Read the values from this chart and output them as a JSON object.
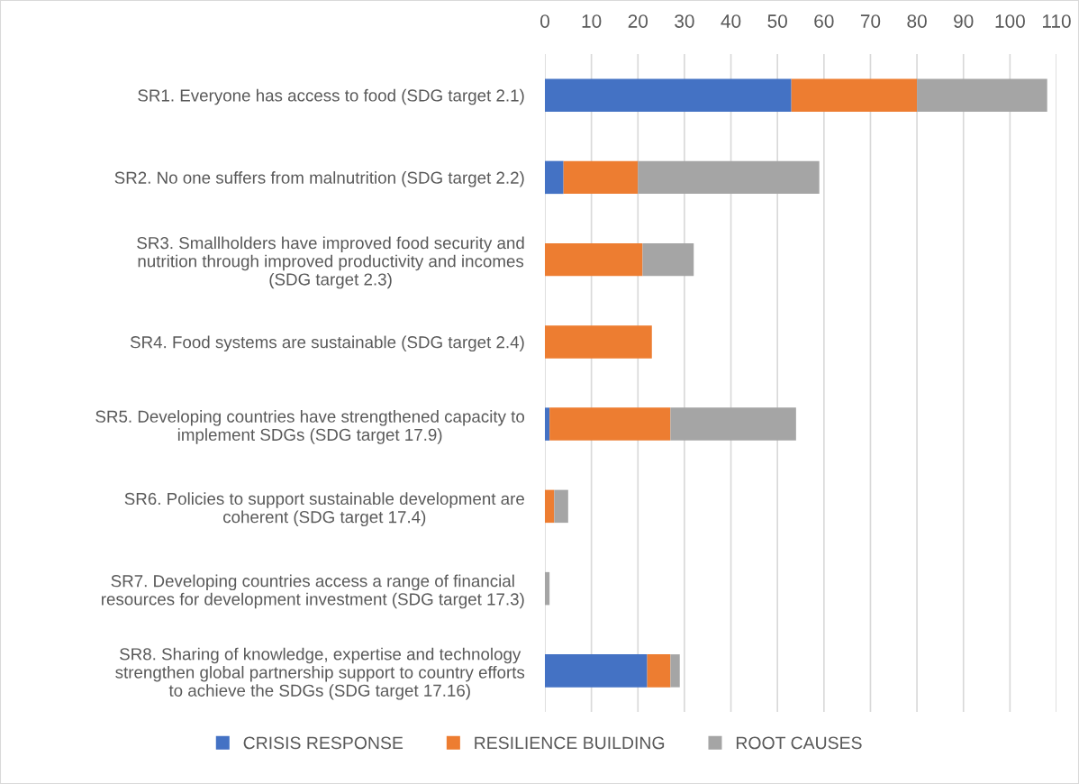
{
  "chart_data": {
    "type": "bar",
    "orientation": "horizontal",
    "stacked": true,
    "categories": [
      "SR1. Everyone has access to food (SDG target 2.1)",
      "SR2. No one suffers from malnutrition (SDG target 2.2)",
      "SR3. Smallholders have improved food security and\nnutrition through improved productivity and incomes\n(SDG target 2.3)",
      "SR4. Food systems are sustainable (SDG target 2.4)",
      "SR5. Developing countries have strengthened capacity to\nimplement SDGs (SDG target 17.9)",
      "SR6. Policies to support sustainable development are\ncoherent (SDG target 17.4)",
      "SR7. Developing countries access a range of financial\nresources for development investment (SDG target 17.3)",
      "SR8. Sharing of knowledge, expertise and technology\nstrengthen global partnership support to country efforts\nto achieve the SDGs (SDG target 17.16)"
    ],
    "series": [
      {
        "name": "CRISIS RESPONSE",
        "color": "#4472c4",
        "values": [
          53,
          4,
          0,
          0,
          1,
          0,
          0,
          22
        ]
      },
      {
        "name": "RESILIENCE BUILDING",
        "color": "#ed7d31",
        "values": [
          27,
          16,
          21,
          23,
          26,
          2,
          0,
          5
        ]
      },
      {
        "name": "ROOT CAUSES",
        "color": "#a5a5a5",
        "values": [
          28,
          39,
          11,
          0,
          27,
          3,
          1,
          2
        ]
      }
    ],
    "xlim": [
      0,
      110
    ],
    "xticks": [
      0,
      10,
      20,
      30,
      40,
      50,
      60,
      70,
      80,
      90,
      100,
      110
    ],
    "grid": "x",
    "legend": "bottom"
  }
}
